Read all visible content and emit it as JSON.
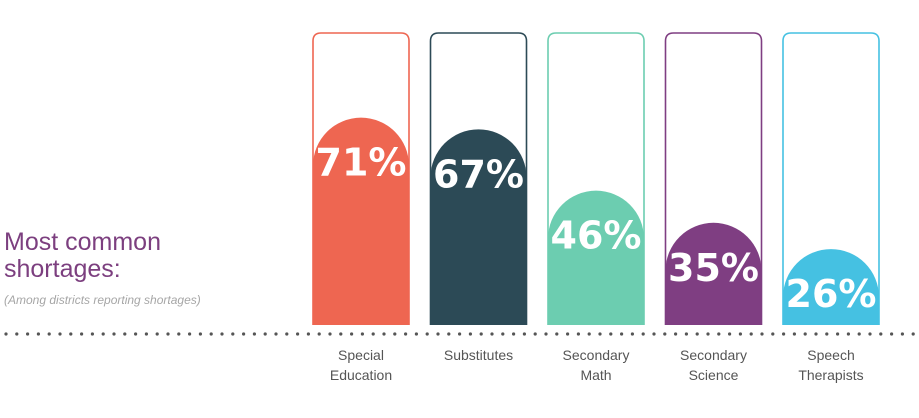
{
  "heading": {
    "title": "Most common\nshortages:",
    "subtitle": "(Among districts reporting shortages)"
  },
  "colors": {
    "title": "#7c3f7f",
    "subtitle": "#a6a6a6",
    "baseline_dots": "#555555",
    "category_text": "#555555"
  },
  "chart_data": {
    "type": "bar",
    "title": "Most common shortages:",
    "subtitle": "(Among districts reporting shortages)",
    "categories": [
      [
        "Special",
        "Education"
      ],
      [
        "Substitutes"
      ],
      [
        "Secondary",
        "Math"
      ],
      [
        "Secondary",
        "Science"
      ],
      [
        "Speech",
        "Therapists"
      ]
    ],
    "values": [
      71,
      67,
      46,
      35,
      26
    ],
    "value_labels": [
      "71%",
      "67%",
      "46%",
      "35%",
      "26%"
    ],
    "bar_colors": [
      "#ee6651",
      "#2c4a56",
      "#6ccdb0",
      "#7f3e82",
      "#45c1e2"
    ],
    "ylim": [
      0,
      100
    ],
    "grid": false,
    "legend": "none"
  }
}
